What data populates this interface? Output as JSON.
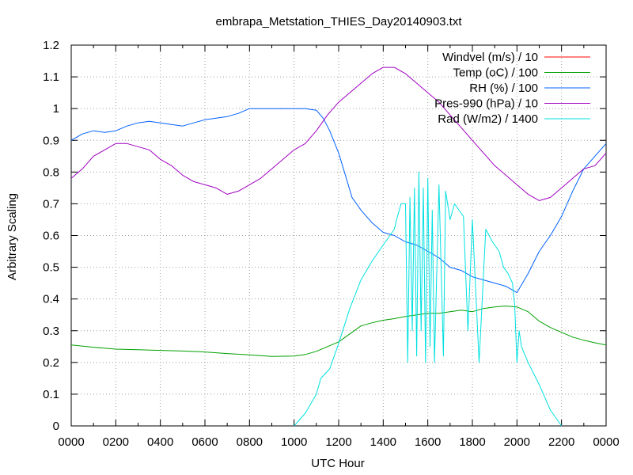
{
  "chart_data": {
    "type": "line",
    "title": "embrapa_Metstation_THIES_Day20140903.txt",
    "xlabel": "UTC Hour",
    "ylabel": "Arbitrary Scaling",
    "xlim": [
      0,
      24
    ],
    "ylim": [
      0,
      1.2
    ],
    "x_tick_labels": [
      "0000",
      "0200",
      "0400",
      "0600",
      "0800",
      "1000",
      "1200",
      "1400",
      "1600",
      "1800",
      "2000",
      "2200",
      "0000"
    ],
    "y_tick_labels": [
      "0",
      "0.1",
      "0.2",
      "0.3",
      "0.4",
      "0.5",
      "0.6",
      "0.7",
      "0.8",
      "0.9",
      "1",
      "1.1",
      "1.2"
    ],
    "grid": true,
    "legend_position": "top-right",
    "series": [
      {
        "name": "Windvel (m/s) / 10",
        "color": "#ff0000",
        "x": [],
        "y": []
      },
      {
        "name": "Temp (oC) / 100",
        "color": "#00a000",
        "x": [
          0,
          1,
          2,
          3,
          4,
          5,
          6,
          7,
          8,
          9,
          10,
          10.5,
          11,
          11.5,
          12,
          12.5,
          13,
          13.5,
          14,
          14.5,
          15,
          15.5,
          16,
          16.5,
          17,
          17.5,
          18,
          18.5,
          19,
          19.5,
          20,
          20.5,
          21,
          21.5,
          22,
          22.5,
          23,
          23.5,
          24
        ],
        "y": [
          0.255,
          0.248,
          0.242,
          0.24,
          0.238,
          0.236,
          0.233,
          0.228,
          0.224,
          0.219,
          0.22,
          0.225,
          0.235,
          0.25,
          0.265,
          0.29,
          0.315,
          0.325,
          0.333,
          0.338,
          0.345,
          0.35,
          0.355,
          0.355,
          0.36,
          0.365,
          0.36,
          0.37,
          0.375,
          0.378,
          0.375,
          0.36,
          0.33,
          0.31,
          0.295,
          0.28,
          0.27,
          0.262,
          0.255
        ]
      },
      {
        "name": "RH (%) / 100",
        "color": "#0060ff",
        "x": [
          0,
          0.5,
          1,
          1.5,
          2,
          2.5,
          3,
          3.5,
          4,
          4.5,
          5,
          5.5,
          6,
          6.5,
          7,
          7.5,
          8,
          8.5,
          9,
          9.5,
          10,
          10.5,
          11,
          11.3,
          11.6,
          12,
          12.3,
          12.6,
          13,
          13.5,
          14,
          14.5,
          15,
          15.5,
          16,
          16.5,
          17,
          17.5,
          18,
          18.5,
          19,
          19.5,
          20,
          20.5,
          21,
          21.5,
          22,
          22.5,
          23,
          23.5,
          24
        ],
        "y": [
          0.9,
          0.92,
          0.93,
          0.925,
          0.93,
          0.945,
          0.955,
          0.96,
          0.955,
          0.95,
          0.945,
          0.955,
          0.965,
          0.97,
          0.975,
          0.985,
          1.0,
          1.0,
          1.0,
          1.0,
          1.0,
          1.0,
          0.995,
          0.97,
          0.93,
          0.86,
          0.79,
          0.72,
          0.68,
          0.64,
          0.61,
          0.6,
          0.58,
          0.57,
          0.55,
          0.53,
          0.5,
          0.49,
          0.47,
          0.46,
          0.45,
          0.44,
          0.42,
          0.48,
          0.55,
          0.6,
          0.66,
          0.74,
          0.81,
          0.85,
          0.89
        ]
      },
      {
        "name": "Pres-990 (hPa) / 10",
        "color": "#a000c0",
        "x": [
          0,
          0.5,
          1,
          1.5,
          2,
          2.5,
          3,
          3.5,
          4,
          4.5,
          5,
          5.5,
          6,
          6.5,
          7,
          7.5,
          8,
          8.5,
          9,
          9.5,
          10,
          10.5,
          11,
          11.5,
          12,
          12.5,
          13,
          13.5,
          14,
          14.5,
          15,
          15.5,
          16,
          16.5,
          17,
          17.5,
          18,
          18.5,
          19,
          19.5,
          20,
          20.5,
          21,
          21.5,
          22,
          22.5,
          23,
          23.5,
          24
        ],
        "y": [
          0.78,
          0.81,
          0.85,
          0.87,
          0.89,
          0.89,
          0.88,
          0.87,
          0.84,
          0.82,
          0.79,
          0.77,
          0.76,
          0.75,
          0.73,
          0.74,
          0.76,
          0.78,
          0.81,
          0.84,
          0.87,
          0.89,
          0.93,
          0.98,
          1.02,
          1.05,
          1.08,
          1.11,
          1.13,
          1.13,
          1.11,
          1.08,
          1.05,
          1.02,
          0.98,
          0.94,
          0.9,
          0.86,
          0.82,
          0.79,
          0.76,
          0.73,
          0.71,
          0.72,
          0.75,
          0.78,
          0.81,
          0.82,
          0.86
        ]
      },
      {
        "name": "Rad (W/m2) / 1400",
        "color": "#00e0e0",
        "x": [
          10,
          10.5,
          11,
          11.2,
          11.6,
          12,
          12.5,
          13,
          13.5,
          14,
          14.3,
          14.5,
          14.6,
          14.8,
          15,
          15.1,
          15.2,
          15.3,
          15.4,
          15.5,
          15.6,
          15.7,
          15.8,
          15.9,
          16,
          16.1,
          16.2,
          16.3,
          16.5,
          16.7,
          16.8,
          17,
          17.2,
          17.4,
          17.6,
          17.8,
          18,
          18.3,
          18.6,
          18.9,
          19.2,
          19.4,
          19.6,
          19.8,
          19.9,
          20,
          20.1,
          20.2,
          20.5,
          21,
          21.5,
          22
        ],
        "y": [
          0.0,
          0.04,
          0.1,
          0.15,
          0.18,
          0.26,
          0.37,
          0.46,
          0.52,
          0.57,
          0.6,
          0.62,
          0.65,
          0.7,
          0.7,
          0.2,
          0.72,
          0.3,
          0.75,
          0.22,
          0.8,
          0.3,
          0.75,
          0.2,
          0.78,
          0.25,
          0.68,
          0.2,
          0.76,
          0.22,
          0.74,
          0.65,
          0.7,
          0.68,
          0.66,
          0.3,
          0.65,
          0.2,
          0.62,
          0.58,
          0.55,
          0.5,
          0.48,
          0.45,
          0.38,
          0.2,
          0.3,
          0.25,
          0.2,
          0.13,
          0.05,
          0.0
        ]
      }
    ]
  }
}
